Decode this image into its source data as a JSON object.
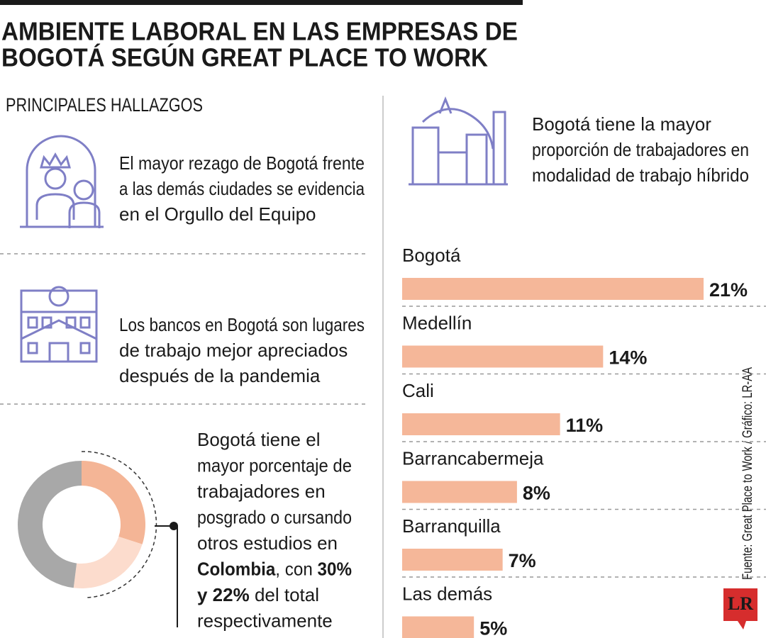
{
  "title": [
    "AMBIENTE LABORAL EN LAS EMPRESAS DE",
    "BOGOTÁ SEGÚN GREAT PLACE TO WORK"
  ],
  "section_title": "PRINCIPALES HALLAZGOS",
  "findings": [
    {
      "text": [
        "El mayor rezago de Bogotá frente",
        "a las demás ciudades se evidencia",
        "en el Orgullo del Equipo"
      ]
    },
    {
      "text": [
        "Los bancos en Bogotá son lugares",
        "de trabajo mejor apreciados",
        "después de la pandemia"
      ]
    }
  ],
  "education_text": [
    [
      {
        "text": "Bogotá tiene el",
        "bold": false
      }
    ],
    [
      {
        "text": "mayor porcentaje de",
        "bold": false
      }
    ],
    [
      {
        "text": "trabajadores en",
        "bold": false
      }
    ],
    [
      {
        "text": "posgrado o cursando",
        "bold": false
      }
    ],
    [
      {
        "text": "otros estudios en",
        "bold": false
      }
    ],
    [
      {
        "text": "Colombia",
        "bold": true
      },
      {
        "text": ", con ",
        "bold": false
      },
      {
        "text": "30%",
        "bold": true
      }
    ],
    [
      {
        "text": "y 22%",
        "bold": true
      },
      {
        "text": " del total",
        "bold": false
      }
    ],
    [
      {
        "text": "respectivamente",
        "bold": false
      }
    ]
  ],
  "hybrid_text": [
    "Bogotá tiene la mayor",
    "proporción de trabajadores en",
    "modalidad de trabajo híbrido"
  ],
  "source": "Fuente: Great Place to Work / Gráfico: LR-AA",
  "logo": "LR",
  "chart_data": [
    {
      "type": "bar",
      "orientation": "horizontal",
      "categories": [
        "Bogotá",
        "Medellín",
        "Cali",
        "Barrancabermeja",
        "Barranquilla",
        "Las demás"
      ],
      "values": [
        21,
        14,
        11,
        8,
        7,
        5
      ],
      "value_labels": [
        "21%",
        "14%",
        "11%",
        "8%",
        "7%",
        "5%"
      ],
      "color": "#f5b799"
    },
    {
      "type": "pie",
      "donut": true,
      "values": [
        30,
        22,
        48
      ],
      "colors": [
        "#f4b596",
        "#fcdccd",
        "#a8a8a8"
      ]
    }
  ]
}
